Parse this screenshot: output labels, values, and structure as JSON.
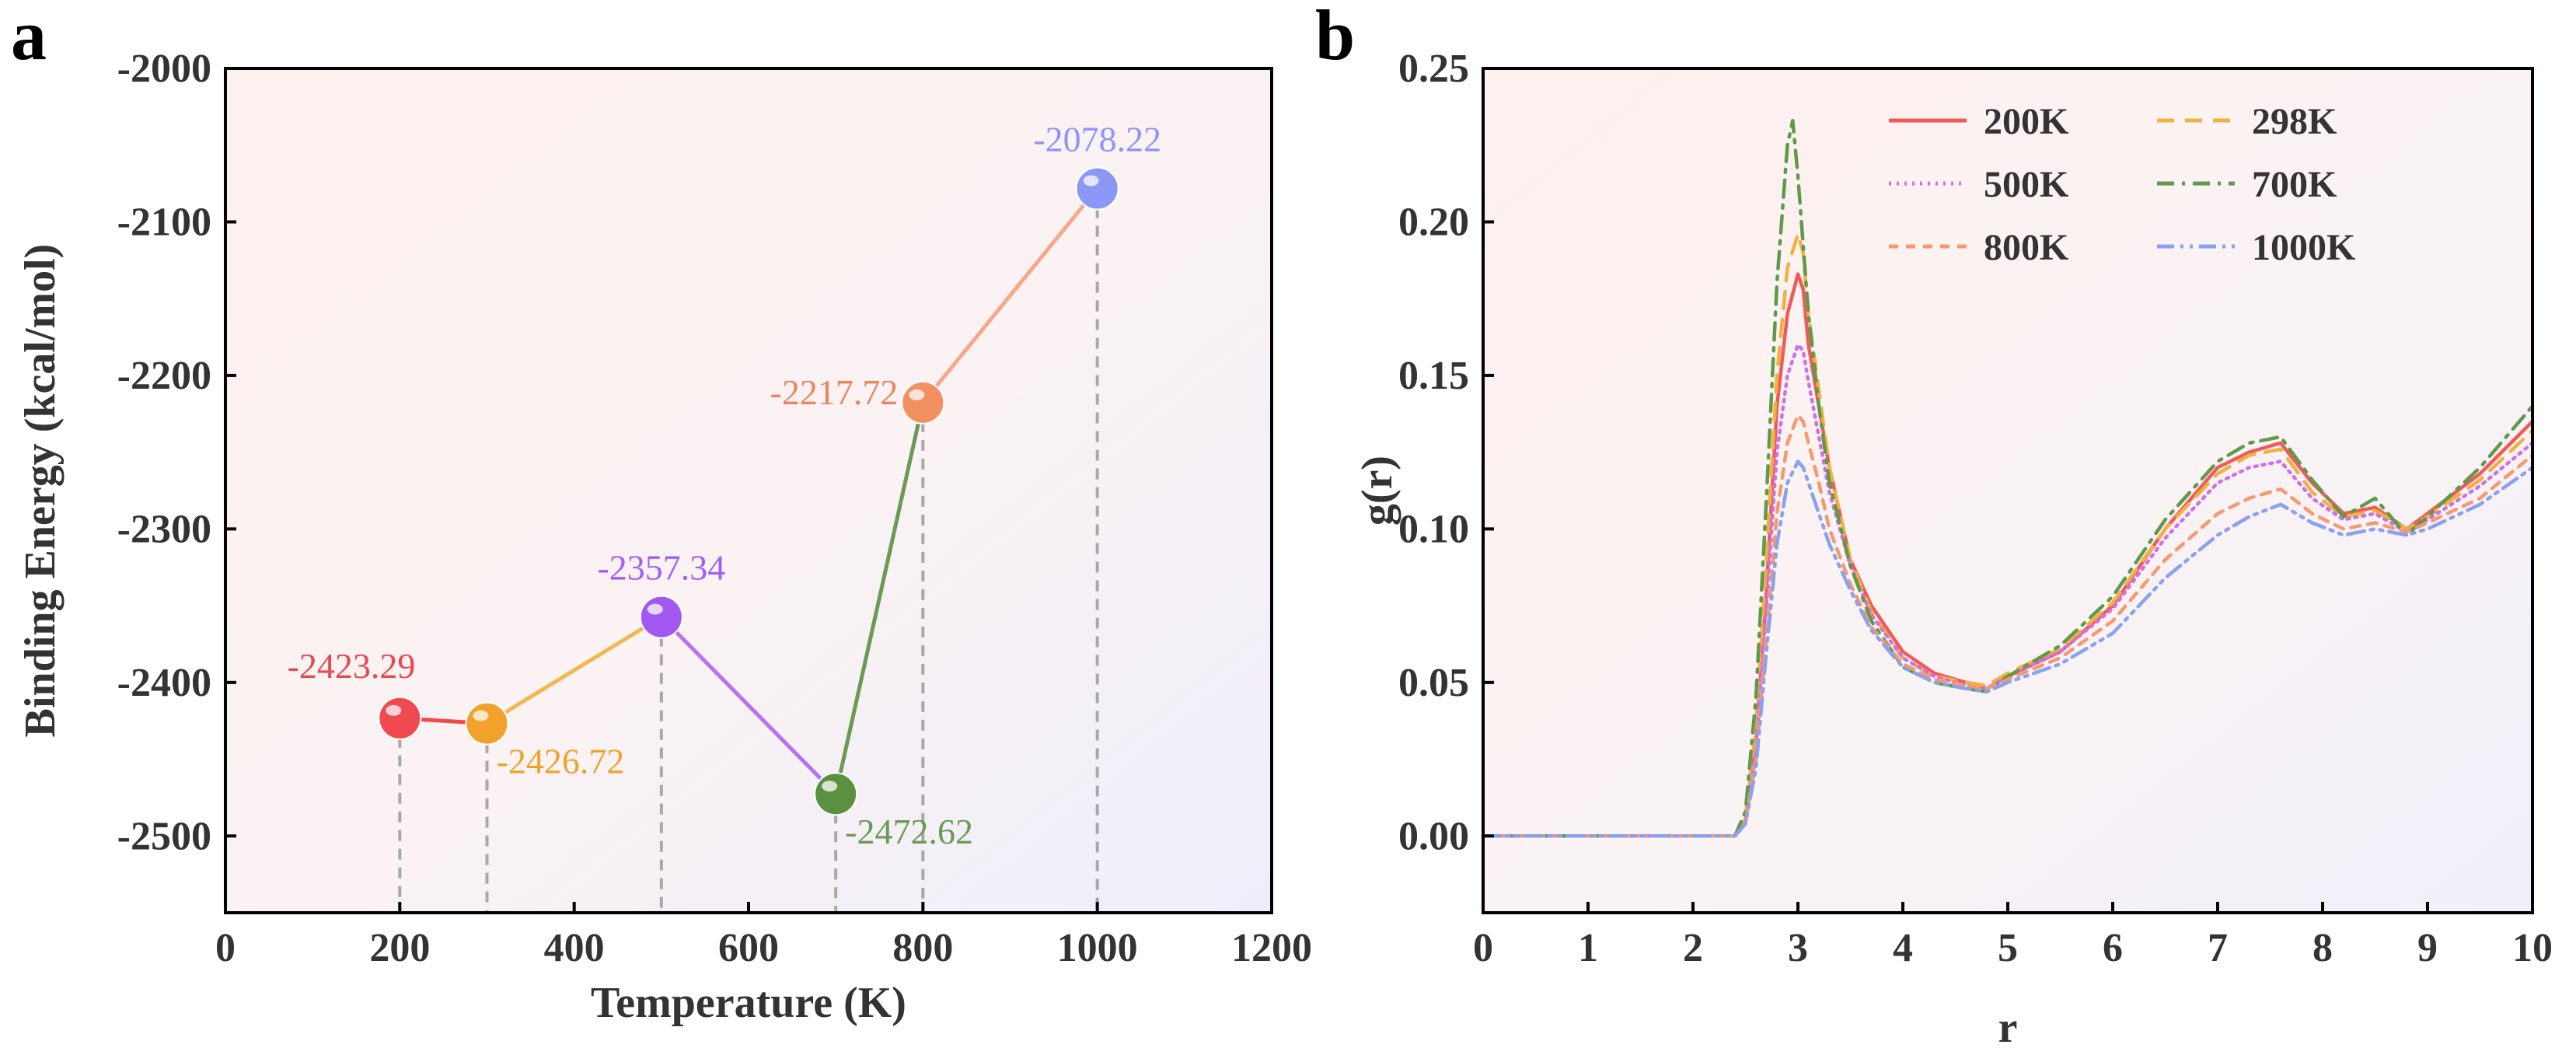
{
  "chart_data": [
    {
      "panel": "a",
      "type": "line",
      "xlabel": "Temperature (K)",
      "ylabel": "Binding Energy (kcal/mol)",
      "xlim": [
        0,
        1200
      ],
      "ylim": [
        -2550,
        -2000
      ],
      "xticks": [
        0,
        200,
        400,
        600,
        800,
        1000,
        1200
      ],
      "yticks": [
        -2500,
        -2400,
        -2300,
        -2200,
        -2100,
        -2000
      ],
      "x": [
        200,
        300,
        500,
        700,
        800,
        1000
      ],
      "values": [
        -2423.29,
        -2426.72,
        -2357.34,
        -2472.62,
        -2217.72,
        -2078.22
      ],
      "labels": [
        "-2423.29",
        "-2426.72",
        "-2357.34",
        "-2472.62",
        "-2217.72",
        "-2078.22"
      ],
      "label_positions": [
        "above-left",
        "below-right",
        "above",
        "below-right",
        "left",
        "above"
      ],
      "point_colors": [
        "#f0494f",
        "#f2a12a",
        "#a257f0",
        "#5a9040",
        "#f29062",
        "#8a97f5"
      ],
      "segment_colors": [
        "#f0494f",
        "#f2b850",
        "#b870f5",
        "#6a9a55",
        "#f5a88a"
      ],
      "label_colors": [
        "#e8484f",
        "#eba52d",
        "#a45ef2",
        "#6a9a55",
        "#e98560",
        "#8d95f5"
      ],
      "drop_lines": true
    },
    {
      "panel": "b",
      "type": "line",
      "xlabel": "r",
      "ylabel": "g(r)",
      "xlim": [
        0,
        10
      ],
      "ylim": [
        -0.025,
        0.25
      ],
      "xticks": [
        0,
        1,
        2,
        3,
        4,
        5,
        6,
        7,
        8,
        9,
        10
      ],
      "yticks": [
        "0.00",
        "0.05",
        "0.10",
        "0.15",
        "0.20",
        "0.25"
      ],
      "legend_position": "top-right",
      "series": [
        {
          "name": "200K",
          "color": "#f05a5a",
          "dash": "solid",
          "x": [
            0,
            2.4,
            2.5,
            2.6,
            2.7,
            2.8,
            2.9,
            3.0,
            3.05,
            3.1,
            3.2,
            3.3,
            3.5,
            3.7,
            4.0,
            4.3,
            4.6,
            4.8,
            5.0,
            5.5,
            6.0,
            6.5,
            7.0,
            7.3,
            7.6,
            7.9,
            8.2,
            8.5,
            8.8,
            9.0,
            9.5,
            10.0
          ],
          "values": [
            0,
            0,
            0.005,
            0.03,
            0.08,
            0.14,
            0.17,
            0.183,
            0.178,
            0.16,
            0.14,
            0.12,
            0.09,
            0.075,
            0.06,
            0.053,
            0.05,
            0.048,
            0.052,
            0.06,
            0.075,
            0.1,
            0.12,
            0.125,
            0.128,
            0.115,
            0.105,
            0.107,
            0.1,
            0.105,
            0.118,
            0.135
          ]
        },
        {
          "name": "298K",
          "color": "#f2b040",
          "dash": "dashed",
          "x": [
            0,
            2.4,
            2.5,
            2.6,
            2.7,
            2.8,
            2.9,
            3.0,
            3.05,
            3.1,
            3.2,
            3.3,
            3.5,
            3.7,
            4.0,
            4.3,
            4.6,
            4.8,
            5.0,
            5.5,
            6.0,
            6.5,
            7.0,
            7.3,
            7.6,
            7.9,
            8.2,
            8.5,
            8.8,
            9.0,
            9.5,
            10.0
          ],
          "values": [
            0,
            0,
            0.006,
            0.035,
            0.09,
            0.15,
            0.185,
            0.196,
            0.19,
            0.17,
            0.145,
            0.12,
            0.09,
            0.073,
            0.058,
            0.052,
            0.05,
            0.049,
            0.053,
            0.061,
            0.076,
            0.1,
            0.118,
            0.124,
            0.126,
            0.112,
            0.104,
            0.106,
            0.1,
            0.104,
            0.116,
            0.132
          ]
        },
        {
          "name": "500K",
          "color": "#d070e8",
          "dash": "dotted",
          "x": [
            0,
            2.4,
            2.5,
            2.6,
            2.7,
            2.8,
            2.9,
            3.0,
            3.05,
            3.1,
            3.2,
            3.3,
            3.5,
            3.7,
            4.0,
            4.3,
            4.6,
            4.8,
            5.0,
            5.5,
            6.0,
            6.5,
            7.0,
            7.3,
            7.6,
            7.9,
            8.2,
            8.5,
            8.8,
            9.0,
            9.5,
            10.0
          ],
          "values": [
            0,
            0,
            0.004,
            0.028,
            0.075,
            0.125,
            0.15,
            0.16,
            0.158,
            0.148,
            0.13,
            0.112,
            0.088,
            0.072,
            0.058,
            0.052,
            0.049,
            0.048,
            0.052,
            0.06,
            0.074,
            0.097,
            0.115,
            0.12,
            0.122,
            0.11,
            0.103,
            0.105,
            0.099,
            0.103,
            0.114,
            0.128
          ]
        },
        {
          "name": "700K",
          "color": "#5e9a4a",
          "dash": "dash-dot",
          "x": [
            0,
            2.4,
            2.5,
            2.6,
            2.7,
            2.8,
            2.9,
            2.95,
            3.0,
            3.1,
            3.2,
            3.3,
            3.5,
            3.7,
            4.0,
            4.3,
            4.6,
            4.8,
            5.0,
            5.5,
            6.0,
            6.5,
            7.0,
            7.3,
            7.6,
            7.9,
            8.2,
            8.5,
            8.8,
            9.0,
            9.5,
            10.0
          ],
          "values": [
            0,
            0,
            0.008,
            0.045,
            0.11,
            0.18,
            0.225,
            0.233,
            0.215,
            0.17,
            0.14,
            0.115,
            0.088,
            0.07,
            0.055,
            0.05,
            0.048,
            0.047,
            0.052,
            0.062,
            0.078,
            0.103,
            0.122,
            0.128,
            0.13,
            0.116,
            0.104,
            0.11,
            0.098,
            0.104,
            0.12,
            0.14
          ]
        },
        {
          "name": "800K",
          "color": "#f59a70",
          "dash": "short-dash",
          "x": [
            0,
            2.4,
            2.5,
            2.6,
            2.7,
            2.8,
            2.9,
            3.0,
            3.05,
            3.1,
            3.2,
            3.3,
            3.5,
            3.7,
            4.0,
            4.3,
            4.6,
            4.8,
            5.0,
            5.5,
            6.0,
            6.5,
            7.0,
            7.3,
            7.6,
            7.9,
            8.2,
            8.5,
            8.8,
            9.0,
            9.5,
            10.0
          ],
          "values": [
            0,
            0,
            0.004,
            0.025,
            0.065,
            0.105,
            0.128,
            0.137,
            0.135,
            0.128,
            0.115,
            0.1,
            0.082,
            0.068,
            0.056,
            0.051,
            0.049,
            0.048,
            0.051,
            0.058,
            0.07,
            0.09,
            0.105,
            0.11,
            0.113,
            0.105,
            0.1,
            0.102,
            0.099,
            0.102,
            0.11,
            0.124
          ]
        },
        {
          "name": "1000K",
          "color": "#8aa0f0",
          "dash": "dash-dot-dot",
          "x": [
            0,
            2.4,
            2.5,
            2.6,
            2.7,
            2.8,
            2.9,
            3.0,
            3.05,
            3.1,
            3.2,
            3.3,
            3.5,
            3.7,
            4.0,
            4.3,
            4.6,
            4.8,
            5.0,
            5.5,
            6.0,
            6.5,
            7.0,
            7.3,
            7.6,
            7.9,
            8.2,
            8.5,
            8.8,
            9.0,
            9.5,
            10.0
          ],
          "values": [
            0,
            0,
            0.004,
            0.022,
            0.06,
            0.095,
            0.115,
            0.122,
            0.12,
            0.115,
            0.105,
            0.095,
            0.08,
            0.067,
            0.055,
            0.05,
            0.048,
            0.047,
            0.05,
            0.056,
            0.066,
            0.084,
            0.098,
            0.104,
            0.108,
            0.102,
            0.098,
            0.1,
            0.098,
            0.1,
            0.108,
            0.12
          ]
        }
      ]
    }
  ]
}
